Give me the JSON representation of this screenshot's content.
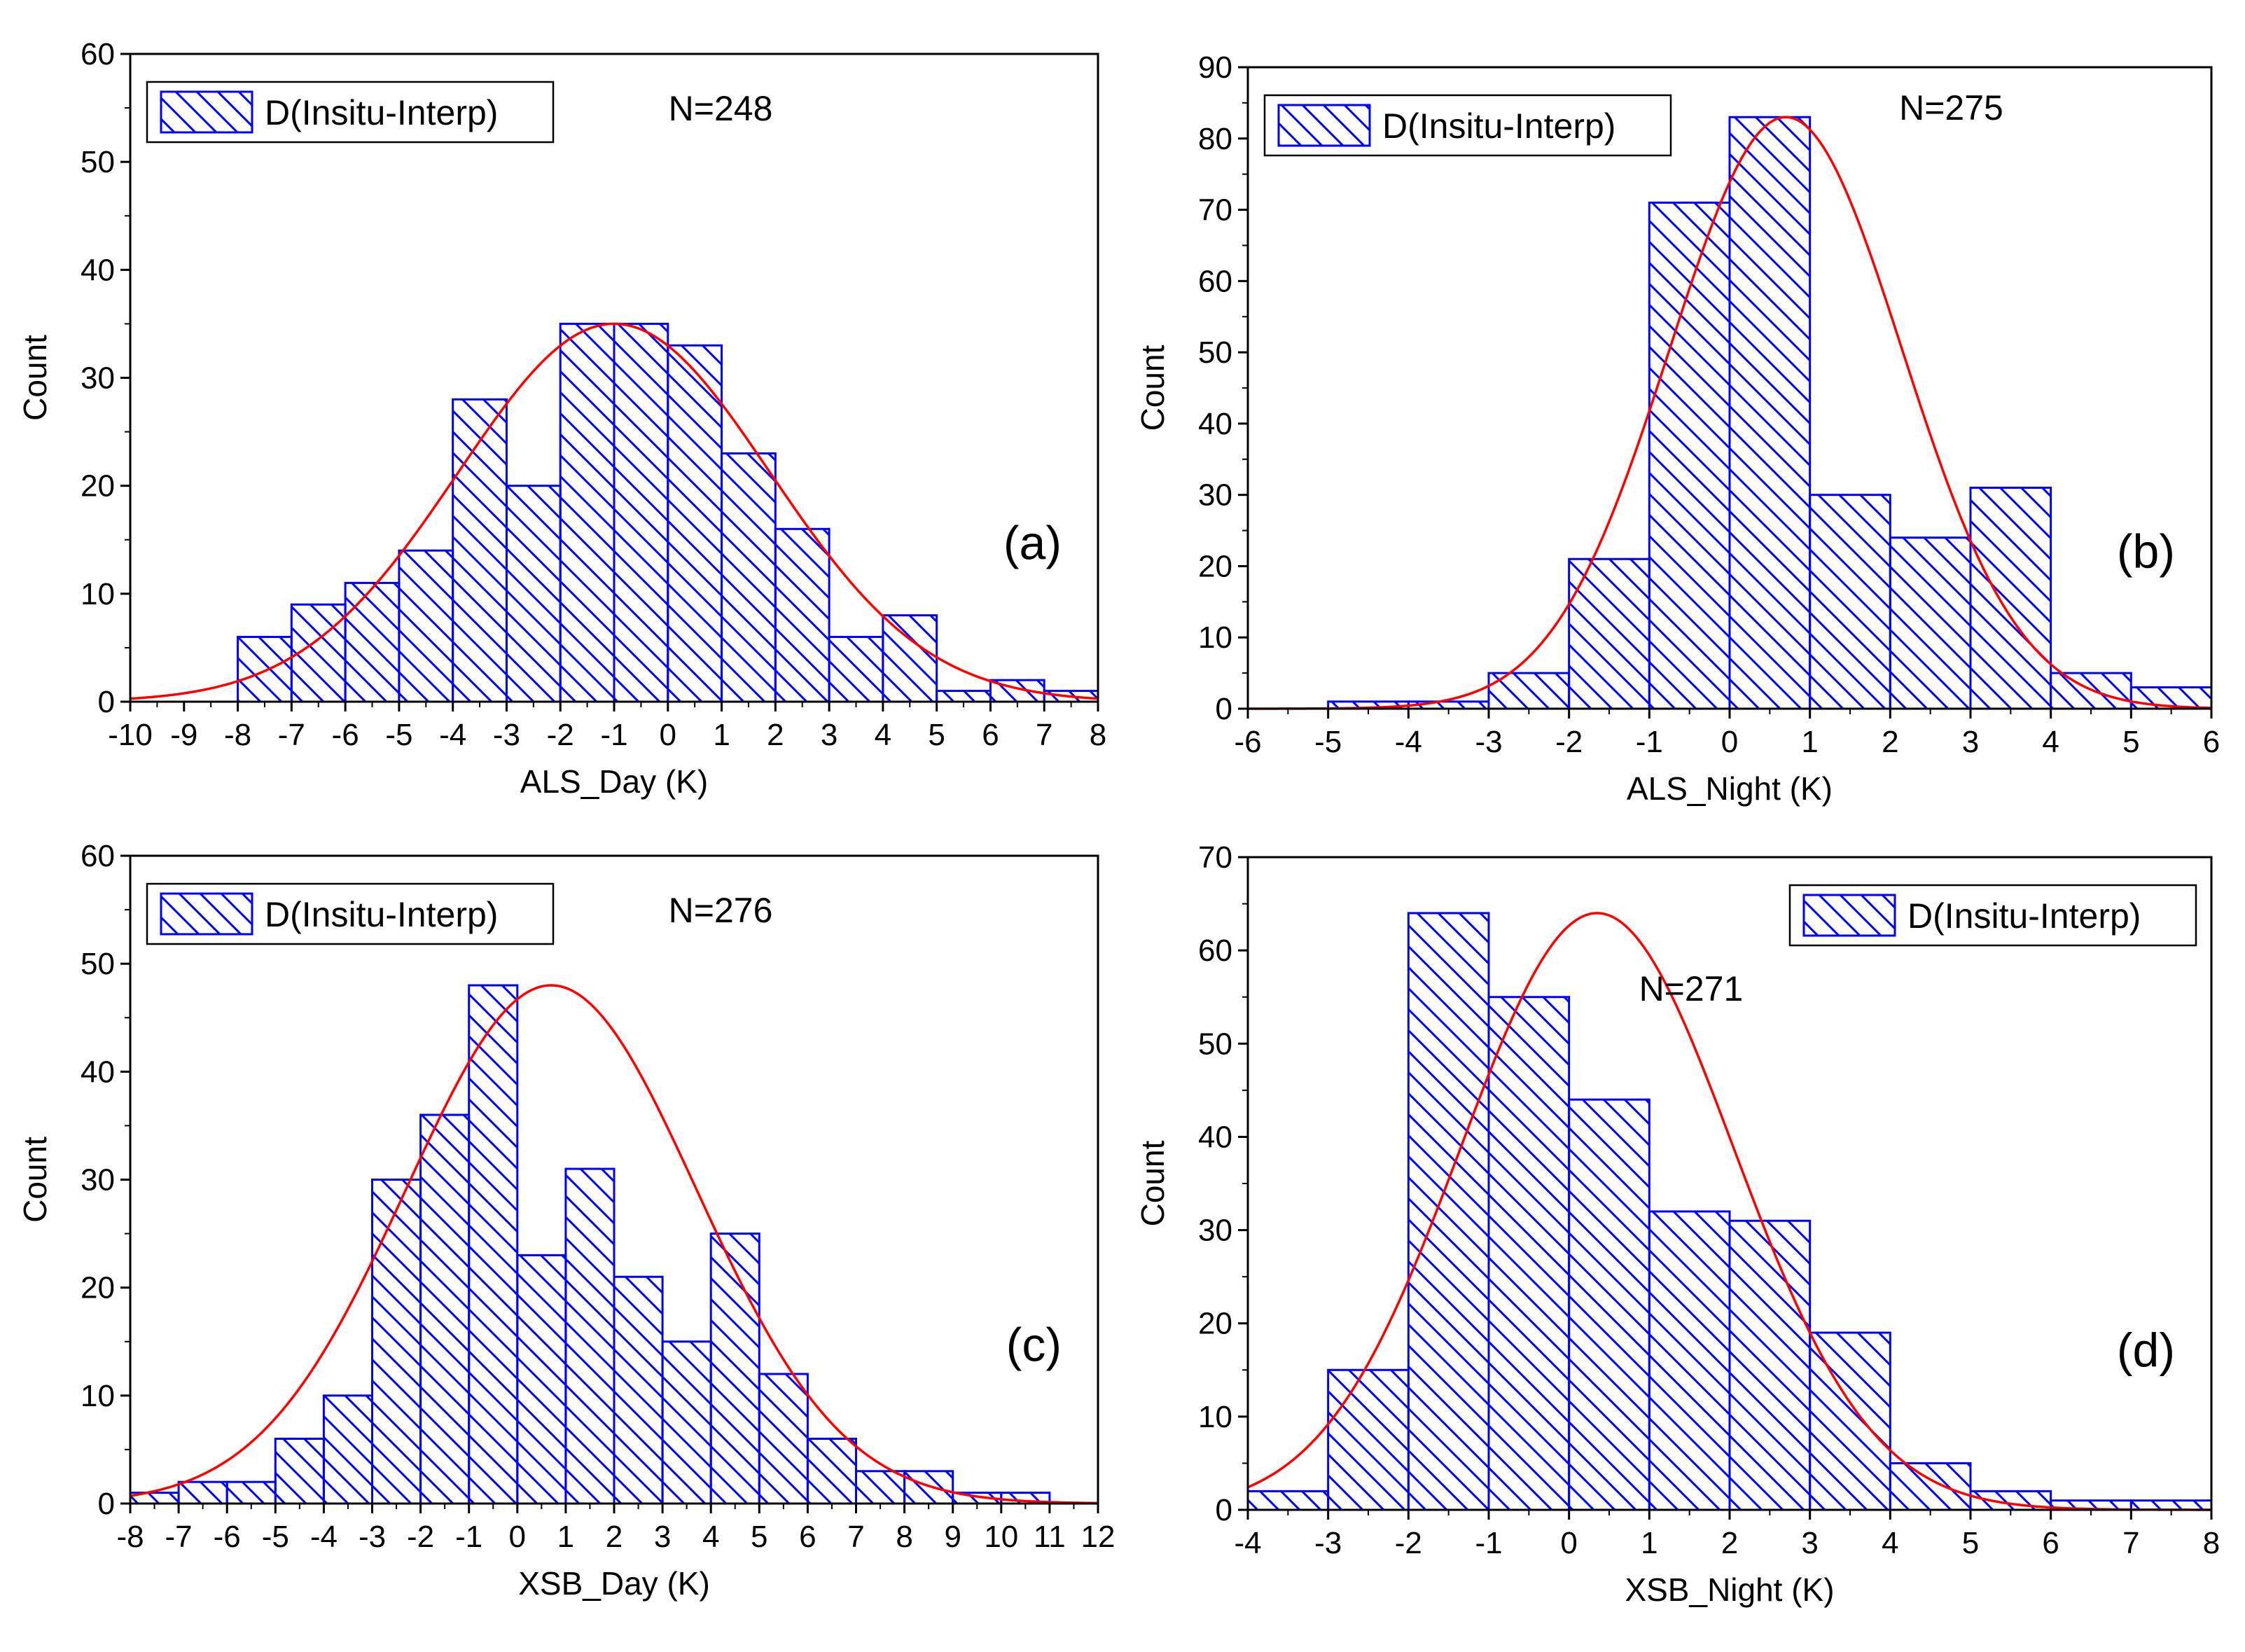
{
  "chart_data": [
    {
      "panel": "(a)",
      "type": "bar",
      "subtype": "histogram",
      "xlabel": "ALS_Day (K)",
      "ylabel": "Count",
      "xlim": [
        -10,
        8
      ],
      "ylim": [
        0,
        60
      ],
      "xticks": [
        -10,
        -9,
        -8,
        -7,
        -6,
        -5,
        -4,
        -3,
        -2,
        -1,
        0,
        1,
        2,
        3,
        4,
        5,
        6,
        7,
        8
      ],
      "yticks": [
        0,
        10,
        20,
        30,
        40,
        50,
        60
      ],
      "bins": [
        {
          "from": -8,
          "to": -7,
          "count": 6
        },
        {
          "from": -7,
          "to": -6,
          "count": 9
        },
        {
          "from": -6,
          "to": -5,
          "count": 11
        },
        {
          "from": -5,
          "to": -4,
          "count": 14
        },
        {
          "from": -4,
          "to": -3,
          "count": 28
        },
        {
          "from": -3,
          "to": -2,
          "count": 20
        },
        {
          "from": -2,
          "to": -1,
          "count": 35
        },
        {
          "from": -1,
          "to": 0,
          "count": 35
        },
        {
          "from": 0,
          "to": 1,
          "count": 33
        },
        {
          "from": 1,
          "to": 2,
          "count": 23
        },
        {
          "from": 2,
          "to": 3,
          "count": 16
        },
        {
          "from": 3,
          "to": 4,
          "count": 6
        },
        {
          "from": 4,
          "to": 5,
          "count": 8
        },
        {
          "from": 5,
          "to": 6,
          "count": 1
        },
        {
          "from": 6,
          "to": 7,
          "count": 2
        },
        {
          "from": 7,
          "to": 8,
          "count": 1
        }
      ],
      "fit": {
        "type": "gaussian",
        "peak": 35,
        "mean": -1.0,
        "sigma": 2.9
      },
      "legend": "D(Insitu-Interp)",
      "legend_position": "top-left",
      "n_label": "N=248",
      "n_position": "top-center",
      "panel_label_position": "right"
    },
    {
      "panel": "(b)",
      "type": "bar",
      "subtype": "histogram",
      "xlabel": "ALS_Night (K)",
      "ylabel": "Count",
      "xlim": [
        -6,
        6
      ],
      "ylim": [
        0,
        90
      ],
      "xticks": [
        -6,
        -5,
        -4,
        -3,
        -2,
        -1,
        0,
        1,
        2,
        3,
        4,
        5,
        6
      ],
      "yticks": [
        0,
        10,
        20,
        30,
        40,
        50,
        60,
        70,
        80,
        90
      ],
      "bins": [
        {
          "from": -5,
          "to": -4,
          "count": 1
        },
        {
          "from": -4,
          "to": -3,
          "count": 1
        },
        {
          "from": -3,
          "to": -2,
          "count": 5
        },
        {
          "from": -2,
          "to": -1,
          "count": 21
        },
        {
          "from": -1,
          "to": 0,
          "count": 71
        },
        {
          "from": 0,
          "to": 1,
          "count": 83
        },
        {
          "from": 1,
          "to": 2,
          "count": 30
        },
        {
          "from": 2,
          "to": 3,
          "count": 24
        },
        {
          "from": 3,
          "to": 4,
          "count": 31
        },
        {
          "from": 4,
          "to": 5,
          "count": 5
        },
        {
          "from": 5,
          "to": 6,
          "count": 3
        }
      ],
      "fit": {
        "type": "gaussian",
        "peak": 83,
        "mean": 0.7,
        "sigma": 1.45
      },
      "legend": "D(Insitu-Interp)",
      "legend_position": "top-left",
      "n_label": "N=275",
      "n_position": "top-right",
      "panel_label_position": "right"
    },
    {
      "panel": "(c)",
      "type": "bar",
      "subtype": "histogram",
      "xlabel": "XSB_Day (K)",
      "ylabel": "Count",
      "xlim": [
        -8,
        12
      ],
      "ylim": [
        0,
        60
      ],
      "xticks": [
        -8,
        -7,
        -6,
        -5,
        -4,
        -3,
        -2,
        -1,
        0,
        1,
        2,
        3,
        4,
        5,
        6,
        7,
        8,
        9,
        10,
        11,
        12
      ],
      "yticks": [
        0,
        10,
        20,
        30,
        40,
        50,
        60
      ],
      "bins": [
        {
          "from": -8,
          "to": -7,
          "count": 1
        },
        {
          "from": -7,
          "to": -6,
          "count": 2
        },
        {
          "from": -6,
          "to": -5,
          "count": 2
        },
        {
          "from": -5,
          "to": -4,
          "count": 6
        },
        {
          "from": -4,
          "to": -3,
          "count": 10
        },
        {
          "from": -3,
          "to": -2,
          "count": 30
        },
        {
          "from": -2,
          "to": -1,
          "count": 36
        },
        {
          "from": -1,
          "to": 0,
          "count": 48
        },
        {
          "from": 0,
          "to": 1,
          "count": 23
        },
        {
          "from": 1,
          "to": 2,
          "count": 31
        },
        {
          "from": 2,
          "to": 3,
          "count": 21
        },
        {
          "from": 3,
          "to": 4,
          "count": 15
        },
        {
          "from": 4,
          "to": 5,
          "count": 25
        },
        {
          "from": 5,
          "to": 6,
          "count": 12
        },
        {
          "from": 6,
          "to": 7,
          "count": 6
        },
        {
          "from": 7,
          "to": 8,
          "count": 3
        },
        {
          "from": 8,
          "to": 9,
          "count": 3
        },
        {
          "from": 9,
          "to": 10,
          "count": 1
        },
        {
          "from": 10,
          "to": 11,
          "count": 1
        }
      ],
      "fit": {
        "type": "gaussian",
        "peak": 48,
        "mean": 0.7,
        "sigma": 3.0
      },
      "legend": "D(Insitu-Interp)",
      "legend_position": "top-left",
      "n_label": "N=276",
      "n_position": "top-center",
      "panel_label_position": "right"
    },
    {
      "panel": "(d)",
      "type": "bar",
      "subtype": "histogram",
      "xlabel": "XSB_Night (K)",
      "ylabel": "Count",
      "xlim": [
        -4,
        8
      ],
      "ylim": [
        0,
        70
      ],
      "xticks": [
        -4,
        -3,
        -2,
        -1,
        0,
        1,
        2,
        3,
        4,
        5,
        6,
        7,
        8
      ],
      "yticks": [
        0,
        10,
        20,
        30,
        40,
        50,
        60,
        70
      ],
      "bins": [
        {
          "from": -4,
          "to": -3,
          "count": 2
        },
        {
          "from": -3,
          "to": -2,
          "count": 15
        },
        {
          "from": -2,
          "to": -1,
          "count": 64
        },
        {
          "from": -1,
          "to": 0,
          "count": 55
        },
        {
          "from": 0,
          "to": 1,
          "count": 44
        },
        {
          "from": 1,
          "to": 2,
          "count": 32
        },
        {
          "from": 2,
          "to": 3,
          "count": 31
        },
        {
          "from": 3,
          "to": 4,
          "count": 19
        },
        {
          "from": 4,
          "to": 5,
          "count": 5
        },
        {
          "from": 5,
          "to": 6,
          "count": 2
        },
        {
          "from": 6,
          "to": 7,
          "count": 1
        },
        {
          "from": 7,
          "to": 8,
          "count": 1
        }
      ],
      "fit": {
        "type": "gaussian",
        "peak": 64,
        "mean": 0.35,
        "sigma": 1.7
      },
      "legend": "D(Insitu-Interp)",
      "legend_position": "top-right",
      "n_label": "N=271",
      "n_position": "upper-center",
      "panel_label_position": "right"
    }
  ],
  "colors": {
    "bar_edge": "#0000ff",
    "bar_hatch": "#0000ff",
    "fit_line": "#ff0000",
    "axes": "#000000",
    "background": "#ffffff"
  }
}
